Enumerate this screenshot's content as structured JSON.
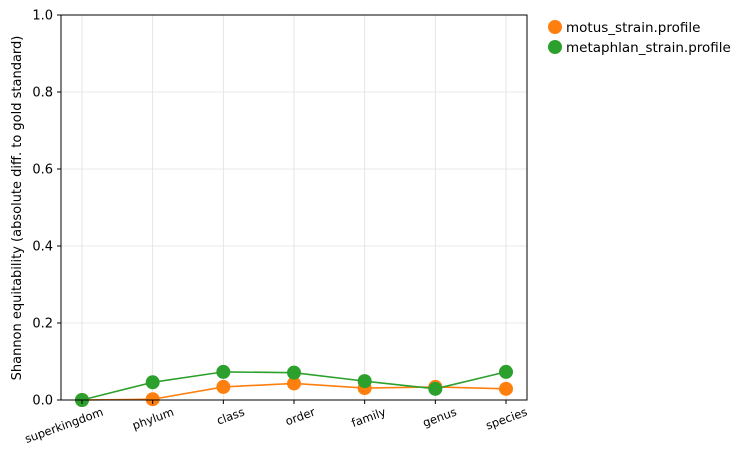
{
  "chart_data": {
    "type": "line",
    "title": "",
    "xlabel": "",
    "ylabel": "Shannon equitability (absolute diff. to gold standard)",
    "categories": [
      "superkingdom",
      "phylum",
      "class",
      "order",
      "family",
      "genus",
      "species"
    ],
    "ylim": [
      0,
      1.0
    ],
    "yticks": [
      "0.0",
      "0.2",
      "0.4",
      "0.6",
      "0.8",
      "1.0"
    ],
    "grid": true,
    "legend_position": "outside-top-right",
    "series": [
      {
        "name": "motus_strain.profile",
        "color": "#ff7f0e",
        "values": [
          0.0,
          0.002,
          0.034,
          0.043,
          0.031,
          0.034,
          0.029
        ]
      },
      {
        "name": "metaphlan_strain.profile",
        "color": "#2ca02c",
        "values": [
          0.0,
          0.046,
          0.073,
          0.071,
          0.049,
          0.029,
          0.073
        ]
      }
    ]
  }
}
